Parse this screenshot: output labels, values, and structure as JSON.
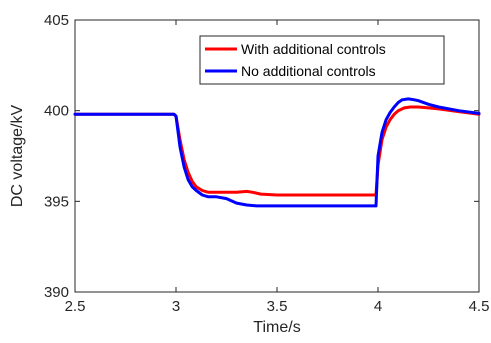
{
  "chart_data": {
    "type": "line",
    "title": "",
    "xlabel": "Time/s",
    "ylabel": "DC voltage/kV",
    "xlim": [
      2.5,
      4.5
    ],
    "ylim": [
      390,
      405
    ],
    "xticks": [
      2.5,
      3,
      3.5,
      4,
      4.5
    ],
    "yticks": [
      390,
      395,
      400,
      405
    ],
    "xtick_labels": [
      "2.5",
      "3",
      "3.5",
      "4",
      "4.5"
    ],
    "ytick_labels": [
      "390",
      "395",
      "400",
      "405"
    ],
    "grid": false,
    "legend_position": "top-right",
    "series": [
      {
        "name": "With additional controls",
        "color": "#ff0000",
        "x": [
          2.5,
          2.99,
          3.0,
          3.02,
          3.04,
          3.06,
          3.08,
          3.1,
          3.13,
          3.16,
          3.2,
          3.25,
          3.3,
          3.35,
          3.38,
          3.42,
          3.5,
          3.6,
          3.7,
          3.8,
          3.9,
          3.99,
          4.0,
          4.02,
          4.04,
          4.06,
          4.08,
          4.1,
          4.13,
          4.16,
          4.2,
          4.25,
          4.3,
          4.4,
          4.5
        ],
        "y": [
          399.8,
          399.8,
          399.7,
          398.4,
          397.3,
          396.6,
          396.1,
          395.8,
          395.6,
          395.5,
          395.5,
          395.5,
          395.5,
          395.55,
          395.5,
          395.4,
          395.35,
          395.35,
          395.35,
          395.35,
          395.35,
          395.35,
          397.0,
          398.4,
          399.1,
          399.5,
          399.8,
          400.0,
          400.15,
          400.2,
          400.2,
          400.15,
          400.1,
          399.95,
          399.8
        ]
      },
      {
        "name": "No additional controls",
        "color": "#0000ff",
        "x": [
          2.5,
          2.99,
          3.0,
          3.02,
          3.04,
          3.06,
          3.08,
          3.1,
          3.13,
          3.16,
          3.2,
          3.25,
          3.3,
          3.35,
          3.4,
          3.5,
          3.6,
          3.7,
          3.8,
          3.9,
          3.99,
          4.0,
          4.02,
          4.04,
          4.06,
          4.08,
          4.1,
          4.12,
          4.15,
          4.18,
          4.2,
          4.25,
          4.3,
          4.4,
          4.5
        ],
        "y": [
          399.8,
          399.8,
          399.7,
          398.0,
          396.9,
          396.2,
          395.8,
          395.6,
          395.35,
          395.25,
          395.25,
          395.15,
          394.9,
          394.8,
          394.75,
          394.75,
          394.75,
          394.75,
          394.75,
          394.75,
          394.75,
          397.5,
          398.8,
          399.5,
          399.9,
          400.2,
          400.45,
          400.6,
          400.65,
          400.6,
          400.55,
          400.35,
          400.2,
          400.0,
          399.85
        ]
      }
    ]
  }
}
